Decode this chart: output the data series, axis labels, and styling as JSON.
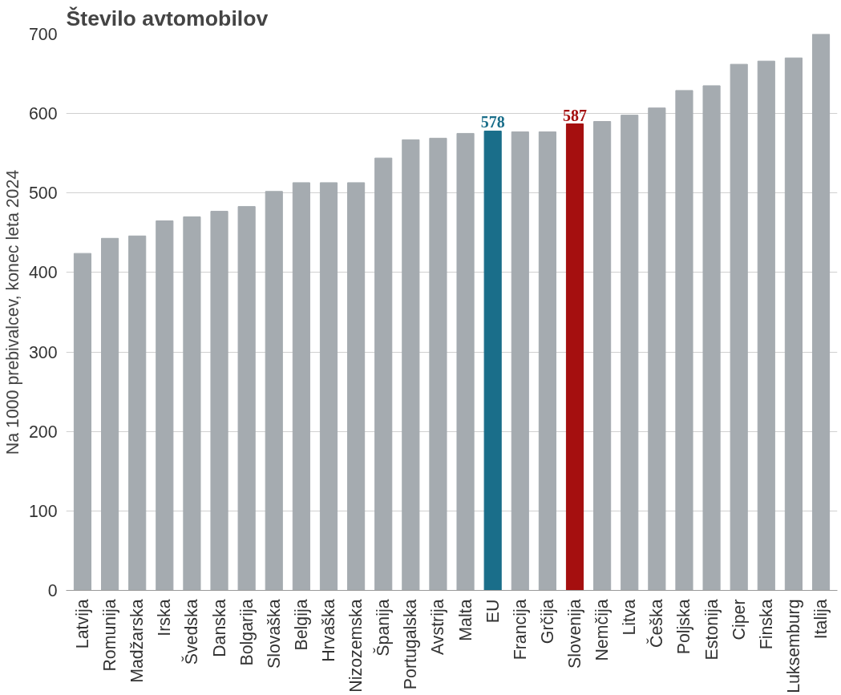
{
  "chart_data": {
    "type": "bar",
    "title": "Število avtomobilov",
    "ylabel": "Na 1000 prebivalcev, konec leta 2024",
    "categories": [
      "Latvija",
      "Romunija",
      "Madžarska",
      "Irska",
      "Švedska",
      "Danska",
      "Bolgarija",
      "Slovaška",
      "Belgija",
      "Hrvaška",
      "Nizozemska",
      "Španija",
      "Portugalska",
      "Avstrija",
      "Malta",
      "EU",
      "Francija",
      "Grčija",
      "Slovenija",
      "Nemčija",
      "Litva",
      "Češka",
      "Poljska",
      "Estonija",
      "Ciper",
      "Finska",
      "Luksemburg",
      "Italija"
    ],
    "values": [
      424,
      443,
      446,
      465,
      470,
      477,
      483,
      502,
      513,
      513,
      513,
      544,
      567,
      569,
      575,
      578,
      577,
      577,
      587,
      590,
      598,
      607,
      629,
      635,
      662,
      666,
      670,
      700
    ],
    "colors": [
      "#a5abb0",
      "#a5abb0",
      "#a5abb0",
      "#a5abb0",
      "#a5abb0",
      "#a5abb0",
      "#a5abb0",
      "#a5abb0",
      "#a5abb0",
      "#a5abb0",
      "#a5abb0",
      "#a5abb0",
      "#a5abb0",
      "#a5abb0",
      "#a5abb0",
      "#1a6e8a",
      "#a5abb0",
      "#a5abb0",
      "#a50f0f",
      "#a5abb0",
      "#a5abb0",
      "#a5abb0",
      "#a5abb0",
      "#a5abb0",
      "#a5abb0",
      "#a5abb0",
      "#a5abb0",
      "#a5abb0"
    ],
    "value_labels": [
      null,
      null,
      null,
      null,
      null,
      null,
      null,
      null,
      null,
      null,
      null,
      null,
      null,
      null,
      null,
      "578",
      null,
      null,
      "587",
      null,
      null,
      null,
      null,
      null,
      null,
      null,
      null,
      null
    ],
    "ylim": [
      0,
      700
    ],
    "yticks": [
      0,
      100,
      200,
      300,
      400,
      500,
      600,
      700
    ],
    "grid": "y"
  }
}
